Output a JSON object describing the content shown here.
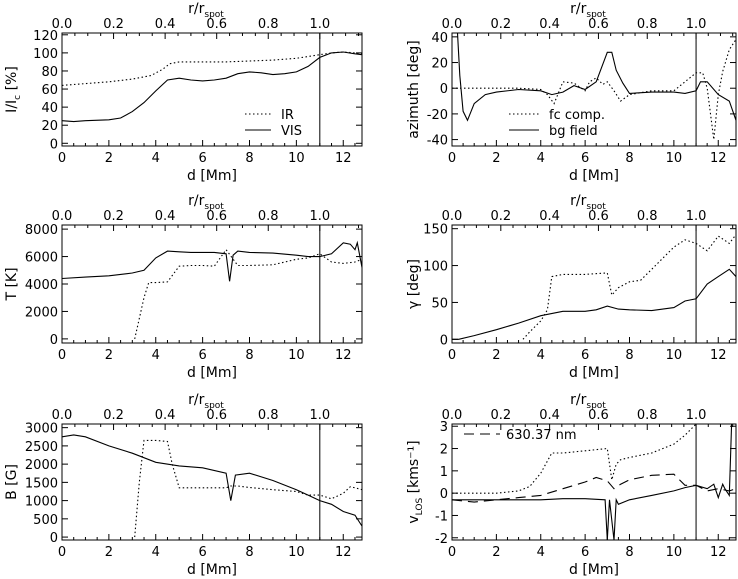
{
  "figure": {
    "top_axis_label": "r/r",
    "top_axis_label_sub": "spot",
    "x_axis_label": "d [Mm]",
    "x_ticks": [
      "0",
      "2",
      "4",
      "6",
      "8",
      "10",
      "12"
    ],
    "top_ticks": [
      "0.0",
      "0.2",
      "0.4",
      "0.6",
      "0.8",
      "1.0"
    ]
  },
  "chart_data": [
    {
      "id": "intensity",
      "type": "line",
      "ylabel": "I/I",
      "ylabel_sub": "c",
      "ylabel_tail": " [%]",
      "xlim": [
        0,
        12.8
      ],
      "ylim": [
        -3,
        122
      ],
      "y_ticks": [
        "0",
        "20",
        "40",
        "60",
        "80",
        "100",
        "120"
      ],
      "y_tick_values": [
        0,
        20,
        40,
        60,
        80,
        100,
        120
      ],
      "vline_x": 11.0,
      "legend": [
        "IR",
        "VIS"
      ],
      "series": [
        {
          "name": "IR",
          "style": "dotted",
          "x": [
            0,
            1,
            2,
            3,
            3.8,
            4.3,
            4.6,
            5,
            5.5,
            6,
            7,
            8,
            9,
            10,
            10.5,
            11,
            11.5,
            12,
            12.5,
            12.8
          ],
          "y": [
            64,
            66,
            68,
            71,
            75,
            82,
            88,
            90,
            90,
            90,
            90,
            91,
            92,
            94,
            96,
            98,
            100,
            101,
            100,
            99
          ]
        },
        {
          "name": "VIS",
          "style": "solid",
          "x": [
            0,
            0.5,
            1,
            2,
            2.5,
            3,
            3.5,
            4,
            4.5,
            5,
            5.5,
            6,
            6.5,
            7,
            7.5,
            8,
            8.5,
            9,
            9.5,
            10,
            10.5,
            11,
            11.5,
            12,
            12.5,
            12.8
          ],
          "y": [
            25,
            24,
            25,
            26,
            28,
            35,
            45,
            58,
            70,
            72,
            70,
            69,
            70,
            72,
            77,
            79,
            78,
            76,
            77,
            79,
            85,
            95,
            100,
            101,
            99,
            98
          ]
        }
      ]
    },
    {
      "id": "azimuth",
      "type": "line",
      "ylabel": "azimuth [deg]",
      "xlim": [
        0,
        12.8
      ],
      "ylim": [
        -45,
        43
      ],
      "y_ticks": [
        "-40",
        "-20",
        "0",
        "20",
        "40"
      ],
      "y_tick_values": [
        -40,
        -20,
        0,
        20,
        40
      ],
      "vline_x": 11.0,
      "legend": [
        "fc comp.",
        "bg field"
      ],
      "series": [
        {
          "name": "fc comp.",
          "style": "dotted",
          "x": [
            0,
            0.5,
            1,
            2,
            3,
            4,
            4.3,
            4.6,
            5,
            5.5,
            6,
            6.2,
            6.5,
            6.8,
            7,
            7.3,
            7.6,
            8,
            9,
            10,
            10.5,
            11,
            11.3,
            11.5,
            11.8,
            12,
            12.2,
            12.5,
            12.8
          ],
          "y": [
            0,
            0,
            0,
            0,
            0,
            -1,
            -5,
            -12,
            5,
            4,
            -2,
            5,
            8,
            3,
            5,
            -2,
            -10,
            -5,
            -2,
            -2,
            5,
            12,
            12,
            0,
            -40,
            -5,
            13,
            30,
            38
          ]
        },
        {
          "name": "bg field",
          "style": "solid",
          "x": [
            0.25,
            0.35,
            0.5,
            0.7,
            1,
            1.5,
            2,
            3,
            4,
            4.5,
            5,
            5.5,
            6,
            6.5,
            7,
            7.2,
            7.4,
            7.7,
            8,
            9,
            10,
            10.5,
            11,
            11.2,
            11.5,
            12,
            12.5,
            12.8
          ],
          "y": [
            43,
            10,
            -18,
            -25,
            -12,
            -5,
            -3,
            -1,
            -2,
            -5,
            -3,
            2,
            -1,
            5,
            28,
            28,
            14,
            4,
            -4,
            -3,
            -3,
            -4,
            -2,
            5,
            5,
            -5,
            -10,
            -25
          ]
        }
      ]
    },
    {
      "id": "temperature",
      "type": "line",
      "ylabel": "T [K]",
      "xlim": [
        0,
        12.8
      ],
      "ylim": [
        -300,
        8300
      ],
      "y_ticks": [
        "0",
        "2000",
        "4000",
        "6000",
        "8000"
      ],
      "y_tick_values": [
        0,
        2000,
        4000,
        6000,
        8000
      ],
      "vline_x": 11.0,
      "series": [
        {
          "name": "",
          "style": "dotted",
          "x": [
            3.1,
            3.5,
            3.7,
            4,
            4.5,
            5,
            5.5,
            6,
            6.5,
            7,
            7.5,
            8,
            9,
            10,
            10.5,
            11,
            11.5,
            12,
            12.5,
            12.8
          ],
          "y": [
            0,
            3000,
            4100,
            4100,
            4150,
            5300,
            5350,
            5350,
            5300,
            6500,
            5350,
            5350,
            5400,
            5800,
            5900,
            6200,
            5600,
            5500,
            5600,
            5800
          ]
        },
        {
          "name": "",
          "style": "solid",
          "x": [
            0,
            1,
            2,
            3,
            3.5,
            4,
            4.5,
            5,
            5.5,
            6,
            6.5,
            7,
            7.15,
            7.3,
            7.5,
            8,
            9,
            10,
            10.5,
            11,
            11.5,
            12,
            12.3,
            12.5,
            12.6,
            12.8
          ],
          "y": [
            4400,
            4500,
            4600,
            4800,
            5000,
            5900,
            6400,
            6350,
            6300,
            6300,
            6300,
            6200,
            4200,
            6100,
            6400,
            6300,
            6250,
            6100,
            6000,
            6000,
            6200,
            7000,
            6900,
            6500,
            7000,
            5200
          ]
        }
      ]
    },
    {
      "id": "inclination",
      "type": "line",
      "ylabel": "γ [deg]",
      "xlim": [
        0,
        12.8
      ],
      "ylim": [
        -5,
        155
      ],
      "y_ticks": [
        "0",
        "50",
        "100",
        "150"
      ],
      "y_tick_values": [
        0,
        50,
        100,
        150
      ],
      "vline_x": 11.0,
      "series": [
        {
          "name": "",
          "style": "dotted",
          "x": [
            3.2,
            3.5,
            4,
            4.3,
            4.5,
            5,
            6,
            7,
            7.2,
            7.5,
            8,
            8.5,
            9,
            9.5,
            10,
            10.5,
            11,
            11.5,
            12,
            12.5,
            12.8
          ],
          "y": [
            0,
            10,
            25,
            40,
            85,
            88,
            88,
            90,
            60,
            70,
            78,
            80,
            95,
            110,
            125,
            135,
            130,
            120,
            140,
            130,
            142
          ]
        },
        {
          "name": "",
          "style": "solid",
          "x": [
            0,
            0.3,
            1,
            2,
            3,
            4,
            5,
            6,
            6.5,
            7,
            7.5,
            8,
            9,
            10,
            10.5,
            11,
            11.5,
            12,
            12.5,
            12.8
          ],
          "y": [
            0,
            0,
            5,
            13,
            22,
            32,
            38,
            38,
            40,
            45,
            41,
            40,
            39,
            43,
            52,
            55,
            75,
            85,
            95,
            85
          ]
        }
      ]
    },
    {
      "id": "field_strength",
      "type": "line",
      "ylabel": "B [G]",
      "xlim": [
        0,
        12.8
      ],
      "ylim": [
        -80,
        3100
      ],
      "y_ticks": [
        "0",
        "500",
        "1000",
        "1500",
        "2000",
        "2500",
        "3000"
      ],
      "y_tick_values": [
        0,
        500,
        1000,
        1500,
        2000,
        2500,
        3000
      ],
      "vline_x": 11.0,
      "series": [
        {
          "name": "",
          "style": "dotted",
          "x": [
            3.1,
            3.3,
            3.5,
            4,
            4.5,
            4.7,
            5,
            6,
            7,
            7.2,
            7.5,
            8,
            9,
            10,
            10.5,
            11,
            11.5,
            12,
            12.3,
            12.5,
            12.8
          ],
          "y": [
            0,
            1500,
            2650,
            2650,
            2620,
            2000,
            1350,
            1350,
            1350,
            1400,
            1400,
            1360,
            1300,
            1250,
            1150,
            1150,
            1050,
            1200,
            1380,
            1350,
            1300
          ]
        },
        {
          "name": "",
          "style": "solid",
          "x": [
            0,
            0.5,
            1,
            2,
            3,
            4,
            5,
            6,
            7,
            7.2,
            7.4,
            8,
            9,
            10,
            10.5,
            11,
            11.5,
            12,
            12.5,
            12.8
          ],
          "y": [
            2750,
            2800,
            2750,
            2500,
            2300,
            2050,
            1950,
            1900,
            1750,
            1000,
            1700,
            1750,
            1550,
            1300,
            1150,
            1000,
            900,
            700,
            600,
            300
          ]
        }
      ]
    },
    {
      "id": "velocity",
      "type": "line",
      "ylabel": "v",
      "ylabel_sub": "LOS",
      "ylabel_tail": " [kms⁻¹]",
      "xlim": [
        0,
        12.8
      ],
      "ylim": [
        -2.1,
        3.1
      ],
      "y_ticks": [
        "-2",
        "-1",
        "0",
        "1",
        "2",
        "3"
      ],
      "y_tick_values": [
        -2,
        -1,
        0,
        1,
        2,
        3
      ],
      "vline_x": 11.0,
      "legend": [
        "630.37 nm"
      ],
      "series": [
        {
          "name": "",
          "style": "dotted",
          "x": [
            0,
            1,
            2,
            3,
            3.5,
            4,
            4.5,
            5,
            6,
            7,
            7.2,
            7.4,
            7.6,
            8,
            9,
            10,
            10.5,
            11
          ],
          "y": [
            0,
            0,
            0,
            0.1,
            0.3,
            0.9,
            1.8,
            1.8,
            1.9,
            2.0,
            0.6,
            1.3,
            1.5,
            1.6,
            1.8,
            2.2,
            2.6,
            3.1
          ]
        },
        {
          "name": "630.37 nm",
          "style": "dashed",
          "x": [
            0,
            1,
            2,
            3,
            4,
            5,
            6,
            6.5,
            7,
            7.3,
            7.6,
            8,
            9,
            10,
            10.5,
            11,
            11.5,
            12,
            12.5,
            12.8
          ],
          "y": [
            -0.3,
            -0.4,
            -0.3,
            -0.2,
            -0.1,
            0.2,
            0.5,
            0.7,
            0.55,
            0.2,
            0.4,
            0.6,
            0.8,
            0.85,
            0.35,
            0.35,
            0.1,
            0.2,
            0.1,
            0.2
          ]
        },
        {
          "name": "",
          "style": "solid",
          "x": [
            0,
            1,
            2,
            3,
            4,
            5,
            6,
            6.9,
            7.0,
            7.1,
            7.3,
            7.4,
            7.5,
            8,
            9,
            10,
            10.5,
            11,
            11.5,
            11.8,
            12.0,
            12.2,
            12.3,
            12.5,
            12.6
          ],
          "y": [
            -0.3,
            -0.3,
            -0.3,
            -0.3,
            -0.3,
            -0.25,
            -0.25,
            -0.3,
            -2.1,
            -0.3,
            -2.1,
            -0.3,
            -0.5,
            -0.3,
            -0.1,
            0.1,
            0.25,
            0.35,
            0.2,
            0.4,
            -0.2,
            0.4,
            0.2,
            -0.1,
            3.1
          ]
        }
      ]
    }
  ]
}
